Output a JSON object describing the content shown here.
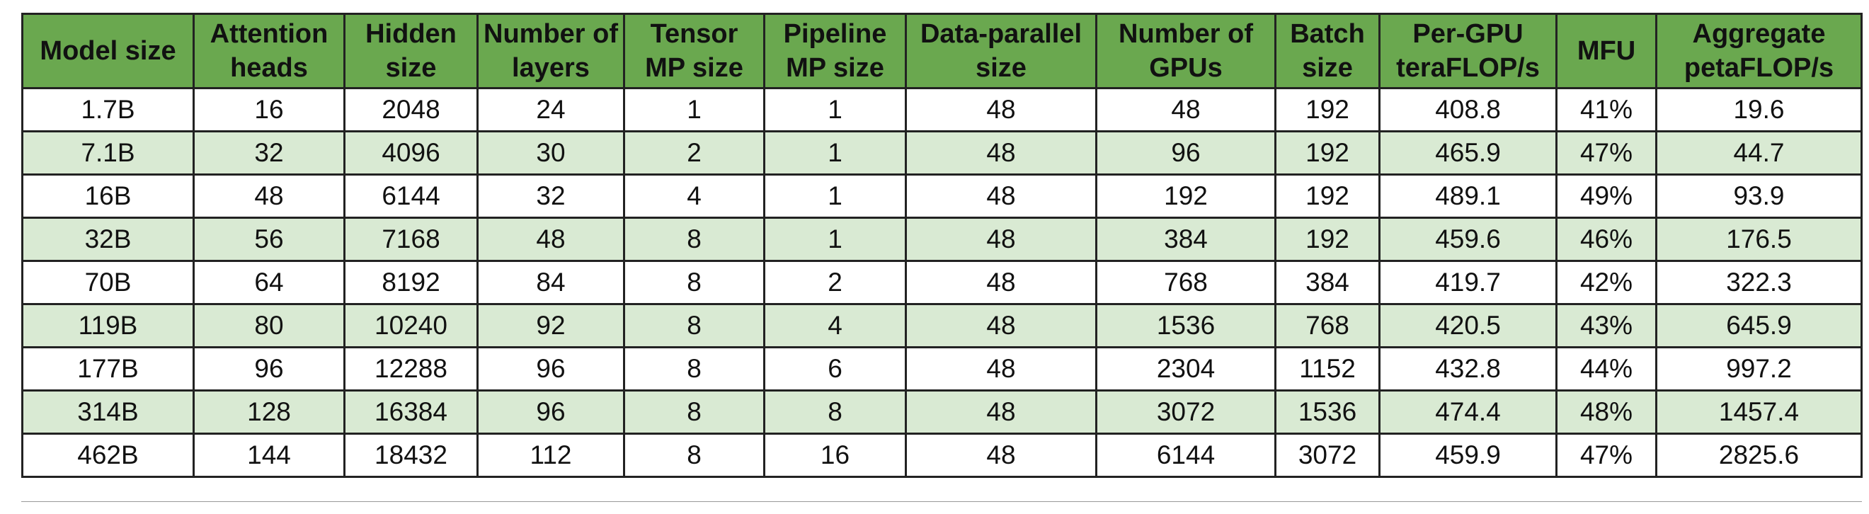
{
  "table": {
    "columns": [
      "Model size",
      "Attention heads",
      "Hidden size",
      "Number of layers",
      "Tensor MP size",
      "Pipeline MP size",
      "Data-parallel size",
      "Number of GPUs",
      "Batch size",
      "Per-GPU teraFLOP/s",
      "MFU",
      "Aggregate petaFLOP/s"
    ],
    "rows": [
      [
        "1.7B",
        "16",
        "2048",
        "24",
        "1",
        "1",
        "48",
        "48",
        "192",
        "408.8",
        "41%",
        "19.6"
      ],
      [
        "7.1B",
        "32",
        "4096",
        "30",
        "2",
        "1",
        "48",
        "96",
        "192",
        "465.9",
        "47%",
        "44.7"
      ],
      [
        "16B",
        "48",
        "6144",
        "32",
        "4",
        "1",
        "48",
        "192",
        "192",
        "489.1",
        "49%",
        "93.9"
      ],
      [
        "32B",
        "56",
        "7168",
        "48",
        "8",
        "1",
        "48",
        "384",
        "192",
        "459.6",
        "46%",
        "176.5"
      ],
      [
        "70B",
        "64",
        "8192",
        "84",
        "8",
        "2",
        "48",
        "768",
        "384",
        "419.7",
        "42%",
        "322.3"
      ],
      [
        "119B",
        "80",
        "10240",
        "92",
        "8",
        "4",
        "48",
        "1536",
        "768",
        "420.5",
        "43%",
        "645.9"
      ],
      [
        "177B",
        "96",
        "12288",
        "96",
        "8",
        "6",
        "48",
        "2304",
        "1152",
        "432.8",
        "44%",
        "997.2"
      ],
      [
        "314B",
        "128",
        "16384",
        "96",
        "8",
        "8",
        "48",
        "3072",
        "1536",
        "474.4",
        "48%",
        "1457.4"
      ],
      [
        "462B",
        "144",
        "18432",
        "112",
        "8",
        "16",
        "48",
        "6144",
        "3072",
        "459.9",
        "47%",
        "2825.6"
      ]
    ]
  },
  "colors": {
    "header_bg": "#6aa84f",
    "row_alt_bg": "#d9ead3",
    "row_bg": "#ffffff"
  }
}
